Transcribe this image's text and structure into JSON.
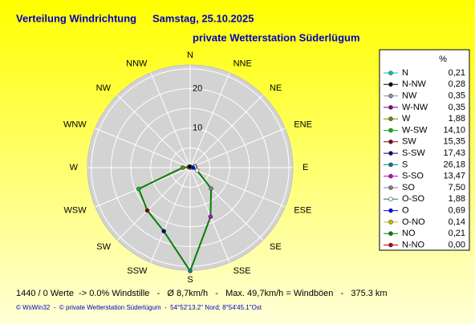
{
  "chart_data": {
    "type": "radar",
    "title": "Verteilung Windrichtung",
    "date": "Samstag, 25.10.2025",
    "subtitle": "private Wetterstation Süderlügum",
    "categories": [
      "N",
      "NNE",
      "NE",
      "ENE",
      "E",
      "ESE",
      "SE",
      "SSE",
      "S",
      "SSW",
      "SW",
      "WSW",
      "W",
      "WNW",
      "NW",
      "NNW"
    ],
    "legend_names": [
      "N",
      "N-NO",
      "NO",
      "O-NO",
      "O",
      "O-SO",
      "SO",
      "S-SO",
      "S",
      "S-SW",
      "SW",
      "W-SW",
      "W",
      "W-NW",
      "NW",
      "N-NW"
    ],
    "values": [
      0.21,
      0.0,
      0.21,
      0.14,
      0.69,
      1.88,
      7.5,
      13.47,
      26.18,
      17.43,
      15.35,
      14.1,
      1.88,
      0.35,
      0.35,
      0.28
    ],
    "value_labels": [
      "0,21",
      "0,00",
      "0,21",
      "0,14",
      "0,69",
      "1,88",
      "7,50",
      "13,47",
      "26,18",
      "17,43",
      "15,35",
      "14,10",
      "1,88",
      "0,35",
      "0,35",
      "0,28"
    ],
    "colors": [
      "#00c0c0",
      "#c00000",
      "#008000",
      "#c0c000",
      "#0000ff",
      "#ffffff",
      "#808080",
      "#c000c0",
      "#008080",
      "#000080",
      "#800000",
      "#00c000",
      "#808000",
      "#800080",
      "#909090",
      "#000000"
    ],
    "line_color": "#008000",
    "legend_header": "%",
    "rlim": [
      0,
      26
    ],
    "rticks": [
      0,
      10,
      20
    ],
    "minor_rticks": [
      5,
      15,
      25
    ],
    "footer": "1440 / 0 Werte  -> 0.0% Windstille   -   Ø 8,7km/h   -   Max. 49,7km/h = Windböen   -   375.3 km",
    "credit": "© WsWin32  -  © private Wetterstation Süderlügum  -  54°52'13.2\" Nord; 8°54'45.1\"Ost"
  }
}
